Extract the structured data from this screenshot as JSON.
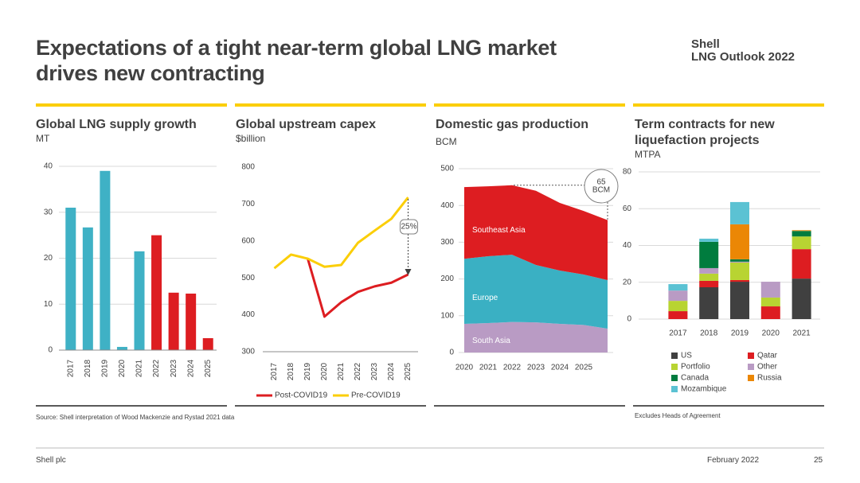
{
  "page": {
    "title_lines": [
      "Expectations of a tight near-term global LNG market",
      "drives new contracting"
    ],
    "brand": "Shell",
    "product": "LNG Outlook 2022",
    "source": "Source: Shell interpretation of Wood Mackenzie and Rystad 2021 data",
    "note": "Excludes Heads of Agreement",
    "company": "Shell plc",
    "date": "February 2022",
    "page_number": "25"
  },
  "chart_data": [
    {
      "type": "bar",
      "title": "Global LNG supply growth",
      "subtitle": "MT",
      "categories": [
        "2017",
        "2018",
        "2019",
        "2020",
        "2021",
        "2022",
        "2023",
        "2024",
        "2025"
      ],
      "values": [
        31,
        26.7,
        39,
        0.7,
        21.5,
        25,
        12.5,
        12.3,
        2.6
      ],
      "colors": [
        "#3fb1c5",
        "#3fb1c5",
        "#3fb1c5",
        "#3fb1c5",
        "#3fb1c5",
        "#dd1d21",
        "#dd1d21",
        "#dd1d21",
        "#dd1d21"
      ],
      "ylim": [
        0,
        40
      ],
      "yticks": [
        0,
        10,
        20,
        30,
        40
      ],
      "grid": true
    },
    {
      "type": "line",
      "title": "Global upstream capex",
      "subtitle": "$billion",
      "categories": [
        "2017",
        "2018",
        "2019",
        "2020",
        "2021",
        "2022",
        "2023",
        "2024",
        "2025"
      ],
      "series": [
        {
          "name": "Post-COVID19",
          "color": "#dd1d21",
          "values": [
            null,
            null,
            552,
            395,
            434,
            462,
            477,
            487,
            509
          ]
        },
        {
          "name": "Pre-COVID19",
          "color": "#fbce07",
          "values": [
            526,
            563,
            552,
            530,
            535,
            595,
            628,
            660,
            718
          ]
        }
      ],
      "ylim": [
        300,
        800
      ],
      "yticks": [
        300,
        400,
        500,
        600,
        700,
        800
      ],
      "grid": false,
      "annotation": "25%",
      "legend": "bottom"
    },
    {
      "type": "area",
      "title": "Domestic gas production",
      "subtitle": "BCM",
      "stacked": true,
      "x": [
        2020,
        2021,
        2022,
        2023,
        2024,
        2025,
        2026
      ],
      "xlim": [
        2020,
        2026
      ],
      "xticks": [
        2020,
        2021,
        2022,
        2023,
        2024,
        2025
      ],
      "series": [
        {
          "name": "South Asia",
          "color": "#b99bc4",
          "values": [
            78,
            80,
            83,
            82,
            78,
            75,
            65
          ]
        },
        {
          "name": "Europe",
          "color": "#3ab0c3",
          "values": [
            177,
            182,
            183,
            156,
            145,
            137,
            132
          ]
        },
        {
          "name": "Southeast Asia",
          "color": "#dd1d21",
          "values": [
            195,
            190,
            189,
            202,
            184,
            173,
            163
          ]
        }
      ],
      "ylim": [
        0,
        500
      ],
      "yticks": [
        0,
        100,
        200,
        300,
        400,
        500
      ],
      "grid": true,
      "annotation_lines": [
        "65",
        "BCM"
      ]
    },
    {
      "type": "stacked_bar",
      "title": "Term contracts for new liquefaction projects",
      "subtitle": "MTPA",
      "categories": [
        "2017",
        "2018",
        "2019",
        "2020",
        "2021"
      ],
      "series": [
        {
          "name": "US",
          "color": "#404040",
          "values": [
            0,
            17.3,
            20.3,
            0,
            22
          ]
        },
        {
          "name": "Qatar",
          "color": "#dd1d21",
          "values": [
            4.3,
            3.5,
            0.9,
            6.9,
            16
          ]
        },
        {
          "name": "Portfolio",
          "color": "#b8d432",
          "values": [
            5.6,
            3.9,
            9.5,
            4.8,
            6.9
          ]
        },
        {
          "name": "Other",
          "color": "#b99bc4",
          "values": [
            5.6,
            3,
            0.5,
            8.6,
            0
          ]
        },
        {
          "name": "Canada",
          "color": "#007c3e",
          "values": [
            0,
            14.3,
            1.3,
            0,
            3
          ]
        },
        {
          "name": "Russia",
          "color": "#eb8705",
          "values": [
            0,
            0,
            19,
            0,
            0.4
          ]
        },
        {
          "name": "Mozambique",
          "color": "#5bc2d3",
          "values": [
            3.5,
            1.7,
            12.1,
            0,
            0
          ]
        }
      ],
      "ylim": [
        0,
        80
      ],
      "yticks": [
        0,
        20,
        40,
        60,
        80
      ],
      "grid": true,
      "legend": "bottom"
    }
  ]
}
